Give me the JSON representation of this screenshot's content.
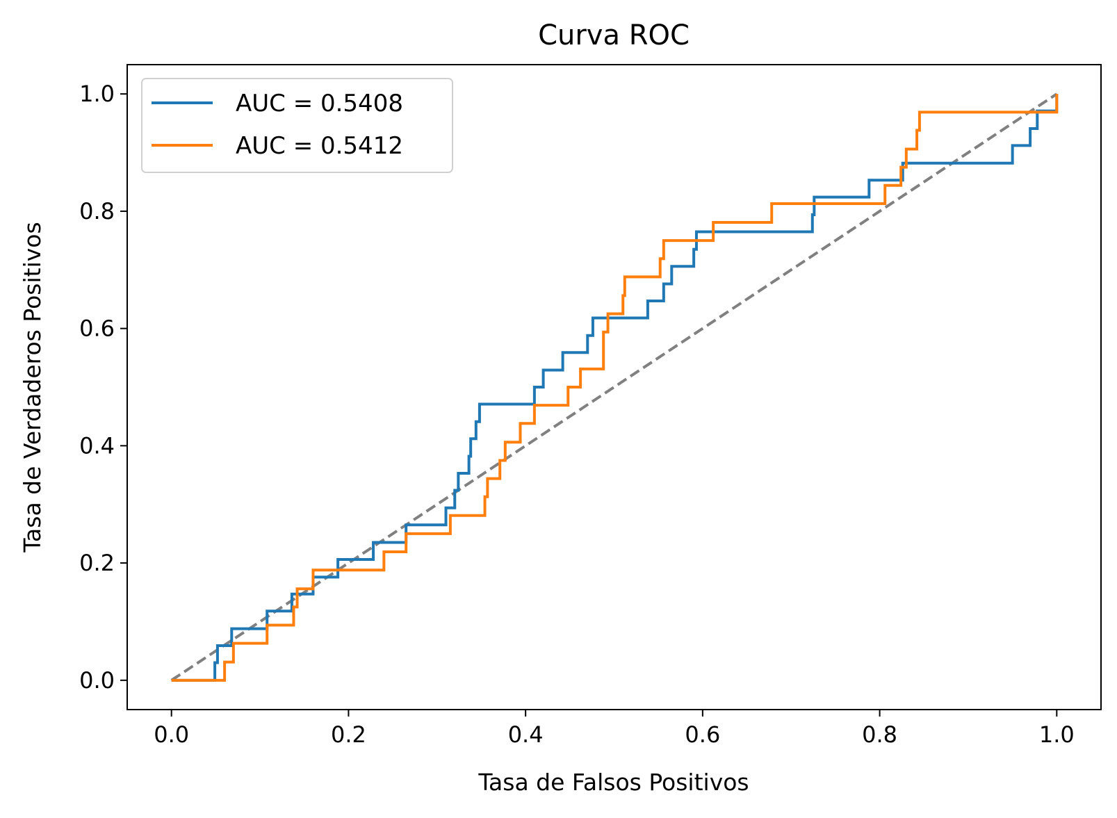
{
  "chart_data": {
    "type": "line",
    "title": "Curva ROC",
    "xlabel": "Tasa de Falsos Positivos",
    "ylabel": "Tasa de Verdaderos Positivos",
    "xlim": [
      -0.05,
      1.05
    ],
    "ylim": [
      -0.05,
      1.05
    ],
    "xticks": [
      "0.0",
      "0.2",
      "0.4",
      "0.6",
      "0.8",
      "1.0"
    ],
    "yticks": [
      "0.0",
      "0.2",
      "0.4",
      "0.6",
      "0.8",
      "1.0"
    ],
    "grid": false,
    "legend_position": "top-left",
    "series": [
      {
        "name": "AUC = 0.5408",
        "color": "#1f77b4",
        "points": [
          [
            0.0,
            0.0
          ],
          [
            0.049,
            0.0
          ],
          [
            0.049,
            0.03
          ],
          [
            0.052,
            0.03
          ],
          [
            0.052,
            0.059
          ],
          [
            0.068,
            0.059
          ],
          [
            0.068,
            0.088
          ],
          [
            0.108,
            0.088
          ],
          [
            0.108,
            0.118
          ],
          [
            0.136,
            0.118
          ],
          [
            0.136,
            0.147
          ],
          [
            0.16,
            0.147
          ],
          [
            0.16,
            0.176
          ],
          [
            0.188,
            0.176
          ],
          [
            0.188,
            0.206
          ],
          [
            0.228,
            0.206
          ],
          [
            0.228,
            0.235
          ],
          [
            0.265,
            0.235
          ],
          [
            0.265,
            0.265
          ],
          [
            0.31,
            0.265
          ],
          [
            0.31,
            0.294
          ],
          [
            0.32,
            0.294
          ],
          [
            0.32,
            0.324
          ],
          [
            0.324,
            0.324
          ],
          [
            0.324,
            0.353
          ],
          [
            0.336,
            0.353
          ],
          [
            0.336,
            0.382
          ],
          [
            0.338,
            0.382
          ],
          [
            0.338,
            0.412
          ],
          [
            0.344,
            0.412
          ],
          [
            0.344,
            0.441
          ],
          [
            0.348,
            0.441
          ],
          [
            0.348,
            0.471
          ],
          [
            0.41,
            0.471
          ],
          [
            0.41,
            0.5
          ],
          [
            0.42,
            0.5
          ],
          [
            0.42,
            0.529
          ],
          [
            0.442,
            0.529
          ],
          [
            0.442,
            0.559
          ],
          [
            0.47,
            0.559
          ],
          [
            0.47,
            0.588
          ],
          [
            0.476,
            0.588
          ],
          [
            0.476,
            0.618
          ],
          [
            0.538,
            0.618
          ],
          [
            0.538,
            0.647
          ],
          [
            0.556,
            0.647
          ],
          [
            0.556,
            0.676
          ],
          [
            0.565,
            0.676
          ],
          [
            0.565,
            0.706
          ],
          [
            0.59,
            0.706
          ],
          [
            0.59,
            0.735
          ],
          [
            0.593,
            0.735
          ],
          [
            0.593,
            0.765
          ],
          [
            0.724,
            0.765
          ],
          [
            0.724,
            0.794
          ],
          [
            0.726,
            0.794
          ],
          [
            0.726,
            0.824
          ],
          [
            0.788,
            0.824
          ],
          [
            0.788,
            0.853
          ],
          [
            0.826,
            0.853
          ],
          [
            0.826,
            0.882
          ],
          [
            0.95,
            0.882
          ],
          [
            0.95,
            0.912
          ],
          [
            0.97,
            0.912
          ],
          [
            0.97,
            0.941
          ],
          [
            0.978,
            0.941
          ],
          [
            0.978,
            0.971
          ],
          [
            1.0,
            0.971
          ],
          [
            1.0,
            1.0
          ]
        ]
      },
      {
        "name": "AUC = 0.5412",
        "color": "#ff7f0e",
        "points": [
          [
            0.0,
            0.0
          ],
          [
            0.06,
            0.0
          ],
          [
            0.06,
            0.031
          ],
          [
            0.07,
            0.031
          ],
          [
            0.07,
            0.063
          ],
          [
            0.108,
            0.063
          ],
          [
            0.108,
            0.094
          ],
          [
            0.138,
            0.094
          ],
          [
            0.138,
            0.125
          ],
          [
            0.142,
            0.125
          ],
          [
            0.142,
            0.156
          ],
          [
            0.16,
            0.156
          ],
          [
            0.16,
            0.188
          ],
          [
            0.24,
            0.188
          ],
          [
            0.24,
            0.219
          ],
          [
            0.265,
            0.219
          ],
          [
            0.265,
            0.25
          ],
          [
            0.315,
            0.25
          ],
          [
            0.315,
            0.281
          ],
          [
            0.354,
            0.281
          ],
          [
            0.354,
            0.313
          ],
          [
            0.357,
            0.313
          ],
          [
            0.357,
            0.344
          ],
          [
            0.371,
            0.344
          ],
          [
            0.371,
            0.375
          ],
          [
            0.377,
            0.375
          ],
          [
            0.377,
            0.406
          ],
          [
            0.394,
            0.406
          ],
          [
            0.394,
            0.438
          ],
          [
            0.41,
            0.438
          ],
          [
            0.41,
            0.469
          ],
          [
            0.448,
            0.469
          ],
          [
            0.448,
            0.5
          ],
          [
            0.462,
            0.5
          ],
          [
            0.462,
            0.531
          ],
          [
            0.488,
            0.531
          ],
          [
            0.488,
            0.594
          ],
          [
            0.493,
            0.594
          ],
          [
            0.493,
            0.625
          ],
          [
            0.51,
            0.625
          ],
          [
            0.51,
            0.656
          ],
          [
            0.512,
            0.656
          ],
          [
            0.512,
            0.688
          ],
          [
            0.552,
            0.688
          ],
          [
            0.552,
            0.719
          ],
          [
            0.556,
            0.719
          ],
          [
            0.556,
            0.75
          ],
          [
            0.612,
            0.75
          ],
          [
            0.612,
            0.781
          ],
          [
            0.678,
            0.781
          ],
          [
            0.678,
            0.813
          ],
          [
            0.806,
            0.813
          ],
          [
            0.806,
            0.844
          ],
          [
            0.824,
            0.844
          ],
          [
            0.824,
            0.875
          ],
          [
            0.83,
            0.875
          ],
          [
            0.83,
            0.906
          ],
          [
            0.842,
            0.906
          ],
          [
            0.842,
            0.938
          ],
          [
            0.845,
            0.938
          ],
          [
            0.845,
            0.969
          ],
          [
            1.0,
            0.969
          ],
          [
            1.0,
            1.0
          ]
        ]
      },
      {
        "color": "#808080",
        "style": "dashed",
        "points": [
          [
            0.0,
            0.0
          ],
          [
            1.0,
            1.0
          ]
        ]
      }
    ]
  }
}
